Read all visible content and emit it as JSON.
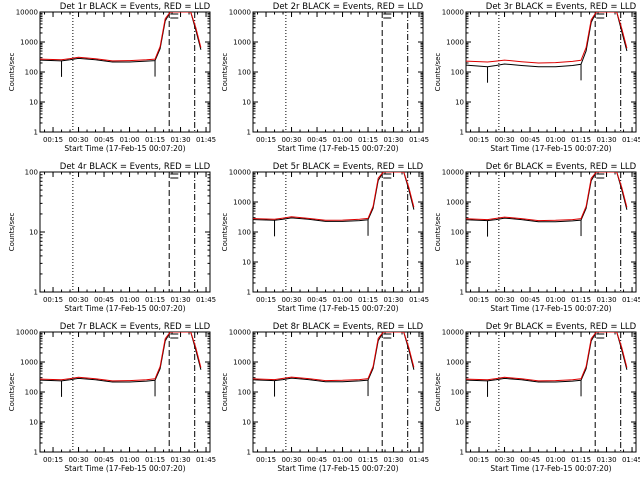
{
  "colors": {
    "events": "#000000",
    "lld": "#dd0000",
    "axes": "#000000",
    "background": "#ffffff"
  },
  "chart_data": [
    {
      "type": "line",
      "title": "Det 1r BLACK = Events, RED = LLD",
      "xlabel": "Start Time (17-Feb-15 00:07:20)",
      "ylabel": "Counts/sec",
      "ylog": true,
      "xlim": [
        "00:07:20",
        "01:47:20"
      ],
      "ylim": [
        1,
        10000
      ],
      "xticks": [
        "00:15",
        "00:30",
        "00:45",
        "01:00",
        "01:15",
        "01:30",
        "01:45"
      ],
      "yticks": [
        "1",
        "10",
        "100",
        "1000",
        "10000"
      ],
      "legend": "title",
      "grid": false,
      "series": [
        {
          "name": "Events",
          "x": [
            "00:07:20",
            "00:20",
            "00:25",
            "00:30",
            "00:40",
            "00:50",
            "01:00",
            "01:10",
            "01:15",
            "01:18",
            "01:21",
            "01:24",
            "01:27",
            "01:30",
            "01:33",
            "01:36",
            "01:39",
            "01:42"
          ],
          "y": [
            250,
            235,
            255,
            285,
            255,
            215,
            215,
            230,
            240,
            600,
            5000,
            10000,
            10000,
            10000,
            10000,
            10000,
            2500,
            550
          ]
        },
        {
          "name": "LLD",
          "x": [
            "00:07:20",
            "00:20",
            "00:25",
            "00:30",
            "00:40",
            "00:50",
            "01:00",
            "01:10",
            "01:15",
            "01:18",
            "01:21",
            "01:24",
            "01:27",
            "01:30",
            "01:33",
            "01:36",
            "01:39",
            "01:42"
          ],
          "y": [
            270,
            255,
            280,
            310,
            275,
            235,
            240,
            255,
            270,
            700,
            6000,
            10000,
            10000,
            10000,
            10000,
            10000,
            3000,
            650
          ]
        }
      ]
    },
    {
      "type": "line",
      "title": "Det 2r BLACK = Events, RED = LLD",
      "xlabel": "Start Time (17-Feb-15 00:07:20)",
      "ylabel": "Counts/sec",
      "ylog": true,
      "xlim": [
        "00:07:20",
        "01:47:20"
      ],
      "ylim": [
        1,
        10000
      ],
      "xticks": [
        "00:15",
        "00:30",
        "00:45",
        "01:00",
        "01:15",
        "01:30",
        "01:45"
      ],
      "yticks": [
        "1",
        "10",
        "100",
        "1000",
        "10000"
      ],
      "legend": "title",
      "grid": false,
      "series": []
    },
    {
      "type": "line",
      "title": "Det 3r BLACK = Events, RED = LLD",
      "xlabel": "Start Time (17-Feb-15 00:07:20)",
      "ylabel": "Counts/sec",
      "ylog": true,
      "xlim": [
        "00:07:20",
        "01:47:20"
      ],
      "ylim": [
        1,
        10000
      ],
      "xticks": [
        "00:15",
        "00:30",
        "00:45",
        "01:00",
        "01:15",
        "01:30",
        "01:45"
      ],
      "yticks": [
        "1",
        "10",
        "100",
        "1000",
        "10000"
      ],
      "legend": "title",
      "grid": false,
      "series": [
        {
          "name": "Events",
          "x": [
            "00:07:20",
            "00:20",
            "00:25",
            "00:30",
            "00:40",
            "00:50",
            "01:00",
            "01:10",
            "01:15",
            "01:18",
            "01:21",
            "01:24",
            "01:27",
            "01:30",
            "01:33",
            "01:36",
            "01:39",
            "01:42"
          ],
          "y": [
            170,
            150,
            165,
            185,
            165,
            150,
            150,
            165,
            180,
            500,
            4500,
            10000,
            10000,
            10000,
            10000,
            10000,
            2200,
            500
          ]
        },
        {
          "name": "LLD",
          "x": [
            "00:07:20",
            "00:20",
            "00:25",
            "00:30",
            "00:40",
            "00:50",
            "01:00",
            "01:10",
            "01:15",
            "01:18",
            "01:21",
            "01:24",
            "01:27",
            "01:30",
            "01:33",
            "01:36",
            "01:39",
            "01:42"
          ],
          "y": [
            230,
            215,
            230,
            250,
            220,
            200,
            205,
            225,
            245,
            650,
            5500,
            10000,
            10000,
            10000,
            10000,
            10000,
            2800,
            620
          ]
        }
      ]
    },
    {
      "type": "line",
      "title": "Det 4r BLACK = Events, RED = LLD",
      "xlabel": "Start Time (17-Feb-15 00:07:20)",
      "ylabel": "Counts/sec",
      "ylog": true,
      "xlim": [
        "00:07:20",
        "01:47:20"
      ],
      "ylim": [
        1,
        100
      ],
      "xticks": [
        "00:15",
        "00:30",
        "00:45",
        "01:00",
        "01:15",
        "01:30",
        "01:45"
      ],
      "yticks": [
        "1",
        "10",
        "100"
      ],
      "legend": "title",
      "grid": false,
      "series": []
    },
    {
      "type": "line",
      "title": "Det 5r BLACK = Events, RED = LLD",
      "xlabel": "Start Time (17-Feb-15 00:07:20)",
      "ylabel": "Counts/sec",
      "ylog": true,
      "xlim": [
        "00:07:20",
        "01:47:20"
      ],
      "ylim": [
        1,
        10000
      ],
      "xticks": [
        "00:15",
        "00:30",
        "00:45",
        "01:00",
        "01:15",
        "01:30",
        "01:45"
      ],
      "yticks": [
        "1",
        "10",
        "100",
        "1000",
        "10000"
      ],
      "legend": "title",
      "grid": false,
      "series": [
        {
          "name": "Events",
          "x": [
            "00:07:20",
            "00:20",
            "00:25",
            "00:30",
            "00:40",
            "00:50",
            "01:00",
            "01:10",
            "01:15",
            "01:18",
            "01:21",
            "01:24",
            "01:27",
            "01:30",
            "01:33",
            "01:36",
            "01:39",
            "01:42"
          ],
          "y": [
            260,
            245,
            265,
            295,
            265,
            225,
            225,
            240,
            255,
            620,
            5200,
            10000,
            10000,
            10000,
            10000,
            10000,
            2600,
            560
          ]
        },
        {
          "name": "LLD",
          "x": [
            "00:07:20",
            "00:20",
            "00:25",
            "00:30",
            "00:40",
            "00:50",
            "01:00",
            "01:10",
            "01:15",
            "01:18",
            "01:21",
            "01:24",
            "01:27",
            "01:30",
            "01:33",
            "01:36",
            "01:39",
            "01:42"
          ],
          "y": [
            280,
            265,
            290,
            320,
            285,
            245,
            250,
            265,
            285,
            720,
            6200,
            10000,
            10000,
            10000,
            10000,
            10000,
            3100,
            670
          ]
        }
      ]
    },
    {
      "type": "line",
      "title": "Det 6r BLACK = Events, RED = LLD",
      "xlabel": "Start Time (17-Feb-15 00:07:20)",
      "ylabel": "Counts/sec",
      "ylog": true,
      "xlim": [
        "00:07:20",
        "01:47:20"
      ],
      "ylim": [
        1,
        10000
      ],
      "xticks": [
        "00:15",
        "00:30",
        "00:45",
        "01:00",
        "01:15",
        "01:30",
        "01:45"
      ],
      "yticks": [
        "1",
        "10",
        "100",
        "1000",
        "10000"
      ],
      "legend": "title",
      "grid": false,
      "series": [
        {
          "name": "Events",
          "x": [
            "00:07:20",
            "00:20",
            "00:25",
            "00:30",
            "00:40",
            "00:50",
            "01:00",
            "01:10",
            "01:15",
            "01:18",
            "01:21",
            "01:24",
            "01:27",
            "01:30",
            "01:33",
            "01:36",
            "01:39",
            "01:42"
          ],
          "y": [
            255,
            240,
            260,
            290,
            260,
            220,
            220,
            235,
            250,
            610,
            5100,
            10000,
            10000,
            10000,
            10000,
            10000,
            2550,
            555
          ]
        },
        {
          "name": "LLD",
          "x": [
            "00:07:20",
            "00:20",
            "00:25",
            "00:30",
            "00:40",
            "00:50",
            "01:00",
            "01:10",
            "01:15",
            "01:18",
            "01:21",
            "01:24",
            "01:27",
            "01:30",
            "01:33",
            "01:36",
            "01:39",
            "01:42"
          ],
          "y": [
            275,
            260,
            285,
            315,
            280,
            240,
            245,
            260,
            280,
            710,
            6100,
            10000,
            10000,
            10000,
            10000,
            10000,
            3050,
            660
          ]
        }
      ]
    },
    {
      "type": "line",
      "title": "Det 7r BLACK = Events, RED = LLD",
      "xlabel": "Start Time (17-Feb-15 00:07:20)",
      "ylabel": "Counts/sec",
      "ylog": true,
      "xlim": [
        "00:07:20",
        "01:47:20"
      ],
      "ylim": [
        1,
        10000
      ],
      "xticks": [
        "00:15",
        "00:30",
        "00:45",
        "01:00",
        "01:15",
        "01:30",
        "01:45"
      ],
      "yticks": [
        "1",
        "10",
        "100",
        "1000",
        "10000"
      ],
      "legend": "title",
      "grid": false,
      "series": [
        {
          "name": "Events",
          "x": [
            "00:07:20",
            "00:20",
            "00:25",
            "00:30",
            "00:40",
            "00:50",
            "01:00",
            "01:10",
            "01:15",
            "01:18",
            "01:21",
            "01:24",
            "01:27",
            "01:30",
            "01:33",
            "01:36",
            "01:39",
            "01:42"
          ],
          "y": [
            250,
            235,
            255,
            285,
            255,
            215,
            215,
            230,
            245,
            600,
            5000,
            10000,
            10000,
            10000,
            10000,
            10000,
            2500,
            550
          ]
        },
        {
          "name": "LLD",
          "x": [
            "00:07:20",
            "00:20",
            "00:25",
            "00:30",
            "00:40",
            "00:50",
            "01:00",
            "01:10",
            "01:15",
            "01:18",
            "01:21",
            "01:24",
            "01:27",
            "01:30",
            "01:33",
            "01:36",
            "01:39",
            "01:42"
          ],
          "y": [
            270,
            255,
            280,
            310,
            275,
            235,
            240,
            255,
            275,
            700,
            6000,
            10000,
            10000,
            10000,
            10000,
            10000,
            3000,
            650
          ]
        }
      ]
    },
    {
      "type": "line",
      "title": "Det 8r BLACK = Events, RED = LLD",
      "xlabel": "Start Time (17-Feb-15 00:07:20)",
      "ylabel": "Counts/sec",
      "ylog": true,
      "xlim": [
        "00:07:20",
        "01:47:20"
      ],
      "ylim": [
        1,
        10000
      ],
      "xticks": [
        "00:15",
        "00:30",
        "00:45",
        "01:00",
        "01:15",
        "01:30",
        "01:45"
      ],
      "yticks": [
        "1",
        "10",
        "100",
        "1000",
        "10000"
      ],
      "legend": "title",
      "grid": false,
      "series": [
        {
          "name": "Events",
          "x": [
            "00:07:20",
            "00:20",
            "00:25",
            "00:30",
            "00:40",
            "00:50",
            "01:00",
            "01:10",
            "01:15",
            "01:18",
            "01:21",
            "01:24",
            "01:27",
            "01:30",
            "01:33",
            "01:36",
            "01:39",
            "01:42"
          ],
          "y": [
            255,
            240,
            260,
            290,
            260,
            220,
            220,
            235,
            250,
            610,
            5100,
            10000,
            10000,
            10000,
            10000,
            10000,
            2550,
            555
          ]
        },
        {
          "name": "LLD",
          "x": [
            "00:07:20",
            "00:20",
            "00:25",
            "00:30",
            "00:40",
            "00:50",
            "01:00",
            "01:10",
            "01:15",
            "01:18",
            "01:21",
            "01:24",
            "01:27",
            "01:30",
            "01:33",
            "01:36",
            "01:39",
            "01:42"
          ],
          "y": [
            275,
            260,
            285,
            315,
            280,
            240,
            245,
            260,
            280,
            710,
            6100,
            10000,
            10000,
            10000,
            10000,
            10000,
            3050,
            660
          ]
        }
      ]
    },
    {
      "type": "line",
      "title": "Det 9r BLACK = Events, RED = LLD",
      "xlabel": "Start Time (17-Feb-15 00:07:20)",
      "ylabel": "Counts/sec",
      "ylog": true,
      "xlim": [
        "00:07:20",
        "01:47:20"
      ],
      "ylim": [
        1,
        10000
      ],
      "xticks": [
        "00:15",
        "00:30",
        "00:45",
        "01:00",
        "01:15",
        "01:30",
        "01:45"
      ],
      "yticks": [
        "1",
        "10",
        "100",
        "1000",
        "10000"
      ],
      "legend": "title",
      "grid": false,
      "series": [
        {
          "name": "Events",
          "x": [
            "00:07:20",
            "00:20",
            "00:25",
            "00:30",
            "00:40",
            "00:50",
            "01:00",
            "01:10",
            "01:15",
            "01:18",
            "01:21",
            "01:24",
            "01:27",
            "01:30",
            "01:33",
            "01:36",
            "01:39",
            "01:42"
          ],
          "y": [
            250,
            235,
            255,
            285,
            255,
            215,
            215,
            230,
            245,
            600,
            5000,
            10000,
            10000,
            10000,
            10000,
            10000,
            2500,
            550
          ]
        },
        {
          "name": "LLD",
          "x": [
            "00:07:20",
            "00:20",
            "00:25",
            "00:30",
            "00:40",
            "00:50",
            "01:00",
            "01:10",
            "01:15",
            "01:18",
            "01:21",
            "01:24",
            "01:27",
            "01:30",
            "01:33",
            "01:36",
            "01:39",
            "01:42"
          ],
          "y": [
            270,
            255,
            280,
            310,
            275,
            235,
            240,
            255,
            275,
            700,
            6000,
            10000,
            10000,
            10000,
            10000,
            10000,
            3000,
            650
          ]
        }
      ]
    }
  ]
}
